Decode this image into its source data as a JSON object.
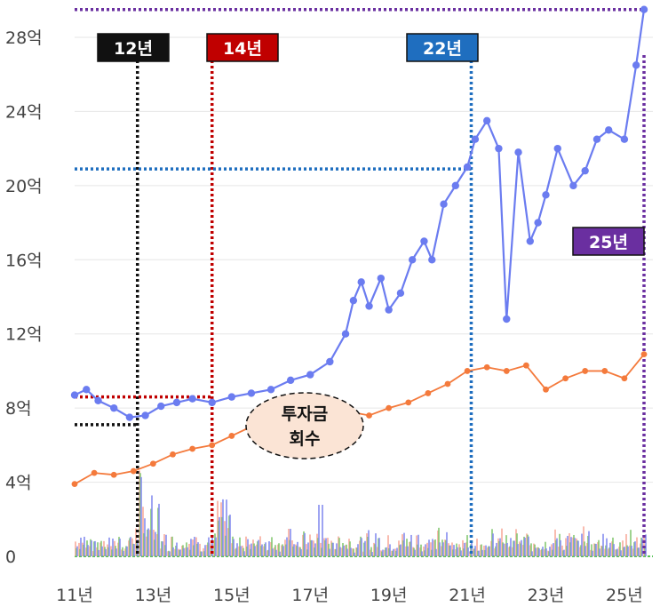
{
  "chart_data": {
    "type": "line",
    "y_ticks": [
      "0",
      "4억",
      "8억",
      "12억",
      "16억",
      "20억",
      "24억",
      "28억"
    ],
    "x_ticks": [
      "11년",
      "13년",
      "15년",
      "17년",
      "19년",
      "21년",
      "23년",
      "25년"
    ],
    "xlim": [
      2011,
      2025.5
    ],
    "ylim": [
      0,
      30
    ],
    "grid": "horizontal",
    "series": [
      {
        "color": "#6b7cf0",
        "x": [
          2011,
          2011.3,
          2011.6,
          2012,
          2012.4,
          2012.8,
          2013.2,
          2013.6,
          2014,
          2014.5,
          2015,
          2015.5,
          2016,
          2016.5,
          2017,
          2017.5,
          2017.9,
          2018.1,
          2018.3,
          2018.5,
          2018.8,
          2019,
          2019.3,
          2019.6,
          2019.9,
          2020.1,
          2020.4,
          2020.7,
          2021,
          2021.2,
          2021.5,
          2021.8,
          2022,
          2022.3,
          2022.6,
          2022.8,
          2023,
          2023.3,
          2023.7,
          2024,
          2024.3,
          2024.6,
          2025,
          2025.3,
          2025.5
        ],
        "y": [
          8.7,
          9.0,
          8.4,
          8.0,
          7.5,
          7.6,
          8.1,
          8.3,
          8.5,
          8.3,
          8.6,
          8.8,
          9.0,
          9.5,
          9.8,
          10.5,
          12.0,
          13.8,
          14.8,
          13.5,
          15.0,
          13.3,
          14.2,
          16.0,
          17.0,
          16.0,
          19.0,
          20.0,
          21.0,
          22.5,
          23.5,
          22.0,
          12.8,
          21.8,
          17.0,
          18.0,
          19.5,
          22.0,
          20.0,
          20.8,
          22.5,
          23.0,
          22.5,
          26.5,
          29.5
        ]
      },
      {
        "color": "#f47a3c",
        "x": [
          2011,
          2011.5,
          2012,
          2012.5,
          2013,
          2013.5,
          2014,
          2014.5,
          2015,
          2015.5,
          2016,
          2016.5,
          2017,
          2017.5,
          2018,
          2018.5,
          2019,
          2019.5,
          2020,
          2020.5,
          2021,
          2021.5,
          2022,
          2022.5,
          2023,
          2023.5,
          2024,
          2024.5,
          2025,
          2025.5
        ],
        "y": [
          3.9,
          4.5,
          4.4,
          4.6,
          5.0,
          5.5,
          5.8,
          6.0,
          6.5,
          7.0,
          7.4,
          7.6,
          7.5,
          8.0,
          7.8,
          7.6,
          8.0,
          8.3,
          8.8,
          9.3,
          10.0,
          10.2,
          10.0,
          10.3,
          9.0,
          9.6,
          10.0,
          10.0,
          9.6,
          10.9
        ]
      }
    ],
    "bars_note": "volume bars along baseline (orange, green, blue)",
    "markers": [
      {
        "label": "12년",
        "year": 2012.6,
        "level": 7.1,
        "color": "#111111"
      },
      {
        "label": "14년",
        "year": 2014.5,
        "level": 8.6,
        "color": "#c00000"
      },
      {
        "label": "22년",
        "year": 2021.1,
        "level": 20.9,
        "color": "#1f6ebf"
      },
      {
        "label": "25년",
        "year": 2025.5,
        "level": 29.5,
        "color": "#6a2fa0"
      }
    ],
    "annotation": [
      "투자금",
      "회수"
    ]
  }
}
